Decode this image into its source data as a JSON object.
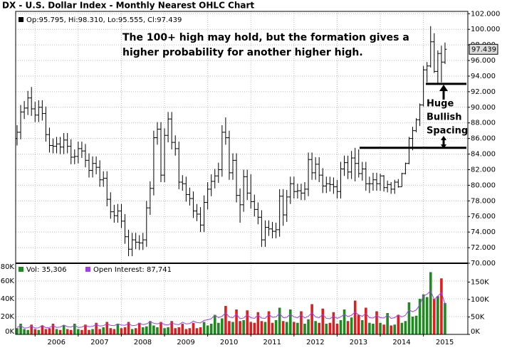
{
  "chart_data": [
    {
      "type": "ohlc",
      "title": "DX - U.S. Dollar Index - Monthly Nearest OHLC Chart",
      "legend_label": "Op:95.795, Hi:98.310, Lo:95.555, Cl:97.439",
      "annotation_lines": [
        "The 100+ high may hold, but the formation gives a",
        "higher probability for another higher high."
      ],
      "spacing_label": [
        "Huge",
        "Bullish",
        "Spacing"
      ],
      "levels": [
        93.0,
        84.8
      ],
      "color": "#000000",
      "categories": [
        null,
        null,
        null,
        null,
        null,
        "2006",
        null,
        null,
        null,
        null,
        null,
        null,
        null,
        null,
        null,
        null,
        null,
        "2007",
        null,
        null,
        null,
        null,
        null,
        null,
        null,
        null,
        null,
        null,
        null,
        "2008",
        null,
        null,
        null,
        null,
        null,
        null,
        null,
        null,
        null,
        null,
        null,
        "2009",
        null,
        null,
        null,
        null,
        null,
        null,
        null,
        null,
        null,
        null,
        null,
        "2010",
        null,
        null,
        null,
        null,
        null,
        null,
        null,
        null,
        null,
        null,
        null,
        "2011",
        null,
        null,
        null,
        null,
        null,
        null,
        null,
        null,
        null,
        null,
        null,
        "2012",
        null,
        null,
        null,
        null,
        null,
        null,
        null,
        null,
        null,
        null,
        null,
        "2013",
        null,
        null,
        null,
        null,
        null,
        null,
        null,
        null,
        null,
        null,
        null,
        "2014",
        null,
        null,
        null,
        null,
        null,
        null,
        null,
        null,
        null,
        null,
        null,
        "2015",
        null,
        null,
        null,
        null,
        null,
        null
      ],
      "open": [
        86.0,
        86.8,
        89.4,
        89.9,
        91.2,
        89.8,
        89.0,
        90.0,
        89.2,
        86.5,
        85.1,
        85.0,
        85.3,
        84.9,
        85.8,
        85.0,
        83.6,
        83.7,
        84.7,
        84.4,
        83.2,
        81.9,
        82.8,
        82.3,
        80.7,
        80.9,
        78.2,
        76.6,
        76.1,
        76.7,
        75.4,
        73.4,
        71.8,
        73.0,
        72.7,
        72.6,
        73.0,
        77.1,
        79.6,
        86.1,
        87.2,
        81.3,
        86.4,
        88.5,
        85.5,
        84.7,
        80.4,
        80.2,
        78.8,
        78.3,
        76.7,
        76.3,
        74.9,
        77.8,
        79.5,
        80.5,
        81.2,
        82.0,
        86.8,
        86.1,
        81.6,
        83.2,
        78.7,
        77.5,
        81.1,
        79.0,
        77.9,
        76.9,
        75.9,
        73.0,
        74.6,
        74.4,
        74.1,
        74.3,
        78.6,
        76.2,
        78.5,
        80.2,
        79.2,
        79.3,
        79.0,
        79.5,
        83.3,
        81.6,
        82.7,
        81.3,
        79.9,
        80.2,
        80.1,
        79.8,
        79.2,
        82.1,
        82.9,
        81.7,
        83.5,
        82.8,
        81.5,
        82.1,
        80.2,
        80.2,
        80.7,
        80.2,
        81.2,
        79.7,
        80.1,
        79.5,
        80.4,
        79.8,
        81.5,
        82.8,
        86.0,
        87.0,
        88.4,
        90.3,
        94.8,
        95.3,
        98.4,
        94.6,
        96.9,
        95.795
      ],
      "high": [
        87.7,
        90.3,
        90.8,
        92.1,
        92.6,
        90.7,
        90.9,
        90.9,
        90.1,
        87.4,
        86.0,
        86.2,
        86.2,
        86.7,
        86.7,
        85.9,
        84.6,
        85.6,
        85.6,
        85.3,
        84.1,
        83.7,
        83.7,
        83.2,
        81.8,
        81.8,
        79.1,
        77.5,
        77.6,
        77.6,
        76.3,
        74.3,
        73.9,
        73.9,
        73.6,
        73.9,
        78.0,
        80.5,
        87.0,
        88.1,
        88.1,
        87.3,
        89.4,
        89.4,
        86.4,
        85.6,
        81.3,
        81.1,
        79.7,
        79.2,
        77.6,
        77.2,
        78.7,
        80.4,
        81.4,
        82.1,
        82.9,
        87.7,
        88.7,
        87.0,
        84.1,
        84.1,
        79.6,
        82.0,
        82.0,
        81.4,
        78.8,
        77.8,
        76.8,
        75.5,
        75.5,
        75.3,
        75.2,
        79.5,
        79.5,
        79.4,
        81.1,
        81.1,
        80.2,
        80.2,
        80.4,
        84.2,
        84.2,
        83.6,
        83.6,
        82.2,
        81.1,
        81.1,
        81.0,
        80.7,
        83.0,
        83.8,
        83.8,
        84.4,
        84.8,
        84.6,
        83.0,
        83.0,
        81.1,
        81.6,
        81.6,
        81.5,
        81.3,
        80.6,
        80.4,
        80.7,
        80.8,
        81.6,
        82.9,
        86.2,
        87.5,
        88.6,
        90.5,
        95.3,
        95.8,
        100.4,
        99.5,
        97.3,
        97.9,
        98.31
      ],
      "low": [
        85.1,
        85.9,
        88.5,
        89.0,
        88.9,
        88.1,
        88.1,
        88.3,
        85.6,
        84.2,
        84.1,
        84.1,
        84.0,
        84.0,
        84.1,
        82.7,
        82.7,
        82.8,
        83.5,
        82.3,
        81.0,
        81.0,
        81.4,
        79.8,
        79.8,
        77.3,
        75.7,
        75.2,
        75.2,
        74.5,
        72.5,
        70.9,
        70.9,
        71.8,
        71.7,
        71.7,
        72.1,
        76.2,
        78.7,
        85.2,
        80.4,
        80.4,
        85.5,
        84.6,
        83.8,
        79.5,
        79.3,
        77.9,
        77.4,
        75.8,
        75.4,
        74.0,
        74.0,
        76.9,
        78.6,
        79.6,
        80.3,
        81.1,
        85.2,
        80.7,
        80.7,
        77.8,
        75.2,
        76.6,
        78.1,
        77.0,
        76.0,
        75.0,
        72.1,
        72.1,
        73.5,
        73.2,
        73.2,
        73.4,
        74.8,
        75.3,
        77.6,
        78.3,
        78.3,
        78.1,
        78.1,
        78.6,
        80.7,
        80.7,
        80.4,
        79.0,
        79.0,
        79.2,
        78.9,
        78.3,
        78.3,
        81.2,
        80.8,
        80.8,
        80.5,
        81.0,
        80.6,
        79.3,
        79.0,
        79.3,
        79.3,
        79.3,
        79.2,
        79.1,
        78.9,
        78.9,
        79.7,
        79.8,
        81.4,
        82.7,
        84.5,
        86.8,
        87.6,
        90.1,
        93.2,
        95.1,
        94.4,
        93.1,
        93.2,
        95.555
      ],
      "close": [
        86.8,
        89.4,
        89.9,
        91.2,
        89.8,
        89.0,
        90.0,
        89.2,
        86.5,
        85.1,
        85.0,
        85.3,
        84.9,
        85.8,
        85.0,
        83.6,
        83.7,
        84.7,
        84.4,
        83.2,
        81.9,
        82.8,
        82.3,
        80.7,
        80.9,
        78.2,
        76.6,
        76.1,
        76.7,
        75.4,
        73.4,
        71.8,
        73.0,
        72.7,
        72.6,
        73.0,
        77.1,
        79.6,
        86.1,
        87.2,
        81.3,
        86.4,
        88.5,
        85.5,
        84.7,
        80.4,
        80.2,
        78.8,
        78.3,
        76.7,
        76.3,
        74.9,
        77.8,
        79.5,
        80.5,
        81.2,
        82.0,
        86.8,
        86.1,
        81.6,
        83.2,
        78.7,
        77.5,
        81.1,
        79.0,
        77.9,
        76.9,
        75.9,
        73.0,
        74.6,
        74.4,
        74.1,
        74.3,
        78.6,
        76.2,
        78.5,
        80.2,
        79.2,
        79.3,
        79.0,
        79.5,
        83.3,
        81.6,
        82.7,
        81.3,
        79.9,
        80.2,
        80.1,
        79.8,
        79.2,
        82.1,
        82.9,
        81.7,
        83.5,
        82.8,
        81.5,
        82.1,
        80.2,
        80.2,
        80.7,
        80.2,
        81.2,
        79.7,
        80.1,
        79.5,
        80.4,
        79.8,
        81.5,
        82.8,
        86.0,
        87.0,
        88.4,
        90.3,
        94.8,
        95.3,
        98.4,
        94.6,
        96.9,
        95.8,
        97.439
      ],
      "ylim": [
        70,
        102.3
      ],
      "yticks": [
        {
          "value": 70,
          "label": "70.000"
        },
        {
          "value": 72,
          "label": "72.000"
        },
        {
          "value": 74,
          "label": "74.000"
        },
        {
          "value": 76,
          "label": "76.000"
        },
        {
          "value": 78,
          "label": "78.000"
        },
        {
          "value": 80,
          "label": "80.000"
        },
        {
          "value": 82,
          "label": "82.000"
        },
        {
          "value": 84,
          "label": "84.000"
        },
        {
          "value": 86,
          "label": "86.000"
        },
        {
          "value": 88,
          "label": "88.000"
        },
        {
          "value": 90,
          "label": "90.000"
        },
        {
          "value": 92,
          "label": "92.000"
        },
        {
          "value": 94,
          "label": "94.000"
        },
        {
          "value": 96,
          "label": "96.000"
        },
        {
          "value": 98,
          "label": "98.000"
        },
        {
          "value": 100,
          "label": "100.000"
        },
        {
          "value": 102,
          "label": "102.000"
        }
      ],
      "grid": true
    },
    {
      "type": "bar",
      "series": [
        {
          "name": "Vol: 35,306",
          "up_color": "#1f8a1f",
          "down_color": "#dd1f1f",
          "values": [
            7000,
            12000,
            6000,
            5000,
            11000,
            6000,
            5000,
            10000,
            6000,
            7000,
            12000,
            6000,
            5000,
            10000,
            6000,
            5000,
            12000,
            6000,
            5000,
            11000,
            5000,
            6000,
            13000,
            6000,
            8000,
            14000,
            7000,
            6000,
            12000,
            7000,
            8000,
            14000,
            6000,
            7000,
            13000,
            8000,
            9000,
            15000,
            10000,
            8000,
            14000,
            7000,
            8000,
            15000,
            7000,
            8000,
            12000,
            6000,
            7000,
            13000,
            7000,
            8000,
            14000,
            10000,
            12000,
            22000,
            13000,
            18000,
            32000,
            15000,
            14000,
            28000,
            15000,
            16000,
            27000,
            14000,
            13000,
            25000,
            15000,
            14000,
            26000,
            13000,
            16000,
            30000,
            15000,
            14000,
            28000,
            14000,
            13000,
            26000,
            12000,
            17000,
            34000,
            15000,
            13000,
            29000,
            12000,
            13000,
            25000,
            12000,
            16000,
            28000,
            15000,
            19000,
            38000,
            22000,
            16000,
            30000,
            13000,
            12000,
            26000,
            13000,
            11000,
            24000,
            10000,
            11000,
            22000,
            13000,
            15000,
            36000,
            20000,
            21000,
            40000,
            45000,
            42000,
            70000,
            40000,
            43000,
            63000,
            35306
          ]
        },
        {
          "name": "Open Interest: 87,741",
          "color": "#a43cf0",
          "axis": "y2",
          "values": [
            20000,
            25000,
            18000,
            19000,
            24000,
            18000,
            19000,
            26000,
            19000,
            20000,
            25000,
            20000,
            21000,
            27000,
            22000,
            21000,
            26000,
            20000,
            21000,
            26000,
            22000,
            23000,
            28000,
            24000,
            25000,
            30000,
            26000,
            25000,
            30000,
            27000,
            26000,
            31000,
            25000,
            26000,
            32000,
            28000,
            30000,
            36000,
            32000,
            30000,
            34000,
            28000,
            27000,
            33000,
            29000,
            28000,
            35000,
            30000,
            31000,
            38000,
            34000,
            33000,
            40000,
            42000,
            45000,
            55000,
            48000,
            52000,
            62000,
            50000,
            48000,
            58000,
            45000,
            47000,
            56000,
            48000,
            46000,
            55000,
            47000,
            46000,
            57000,
            49000,
            50000,
            60000,
            48000,
            49000,
            58000,
            50000,
            48000,
            56000,
            47000,
            52000,
            62000,
            50000,
            48000,
            57000,
            46000,
            45000,
            52000,
            46000,
            50000,
            58000,
            51000,
            55000,
            64000,
            56000,
            52000,
            60000,
            48000,
            47000,
            54000,
            48000,
            47000,
            55000,
            46000,
            48000,
            56000,
            50000,
            55000,
            70000,
            65000,
            70000,
            85000,
            110000,
            115000,
            125000,
            100000,
            110000,
            120000,
            87741
          ]
        }
      ],
      "ylim": [
        0,
        80000
      ],
      "yticks": [
        {
          "value": 0,
          "label": "0K"
        },
        {
          "value": 20000,
          "label": "20K"
        },
        {
          "value": 40000,
          "label": "40K"
        },
        {
          "value": 60000,
          "label": "60K"
        },
        {
          "value": 80000,
          "label": "80K"
        }
      ],
      "y2lim": [
        0,
        204000
      ],
      "y2ticks": [
        {
          "value": 0,
          "label": "0K"
        },
        {
          "value": 50000,
          "label": "50K"
        },
        {
          "value": 100000,
          "label": "100K"
        },
        {
          "value": 150000,
          "label": "150K"
        }
      ],
      "grid": true
    }
  ]
}
